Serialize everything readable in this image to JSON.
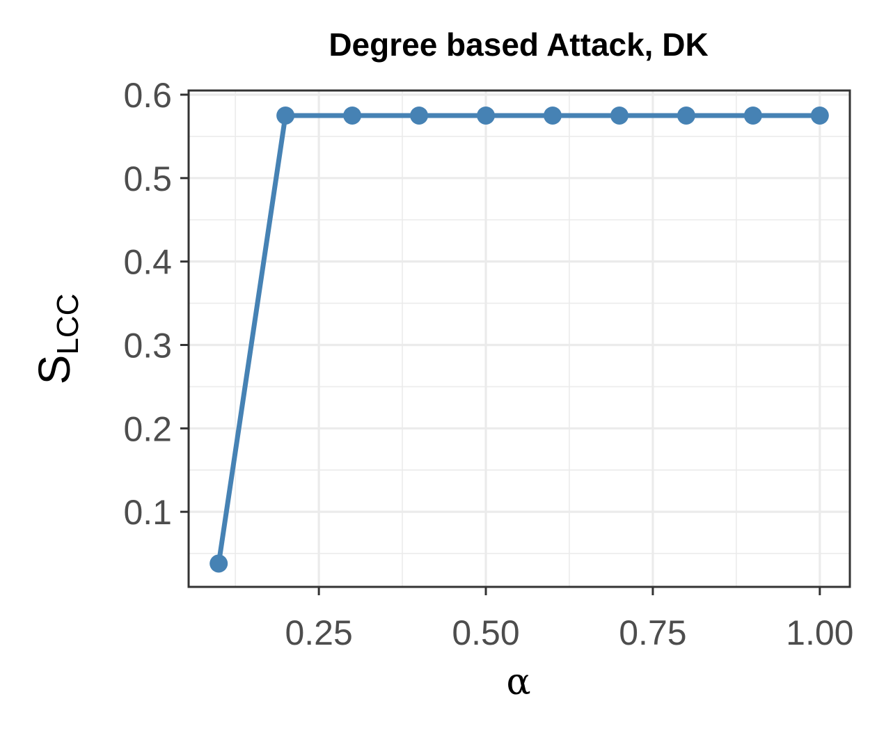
{
  "chart_data": {
    "type": "line",
    "title": "Degree based Attack, DK",
    "xlabel": "α",
    "ylabel": {
      "main": "S",
      "subscript": "LCC"
    },
    "x": [
      0.1,
      0.2,
      0.3,
      0.4,
      0.5,
      0.6,
      0.7,
      0.8,
      0.9,
      1.0
    ],
    "series": [
      {
        "values": [
          0.038,
          0.575,
          0.575,
          0.575,
          0.575,
          0.575,
          0.575,
          0.575,
          0.575,
          0.575
        ]
      }
    ],
    "xlim": [
      0.055,
      1.045
    ],
    "ylim": [
      0.01,
      0.605
    ],
    "xticks": [
      0.25,
      0.5,
      0.75,
      1.0
    ],
    "xtick_labels": [
      "0.25",
      "0.50",
      "0.75",
      "1.00"
    ],
    "yticks": [
      0.1,
      0.2,
      0.3,
      0.4,
      0.5,
      0.6
    ],
    "ytick_labels": [
      "0.1",
      "0.2",
      "0.3",
      "0.4",
      "0.5",
      "0.6"
    ],
    "grid": true,
    "line_color": "#4682B4",
    "grid_color": "#EBEBEB",
    "panel_border_color": "#333333"
  }
}
